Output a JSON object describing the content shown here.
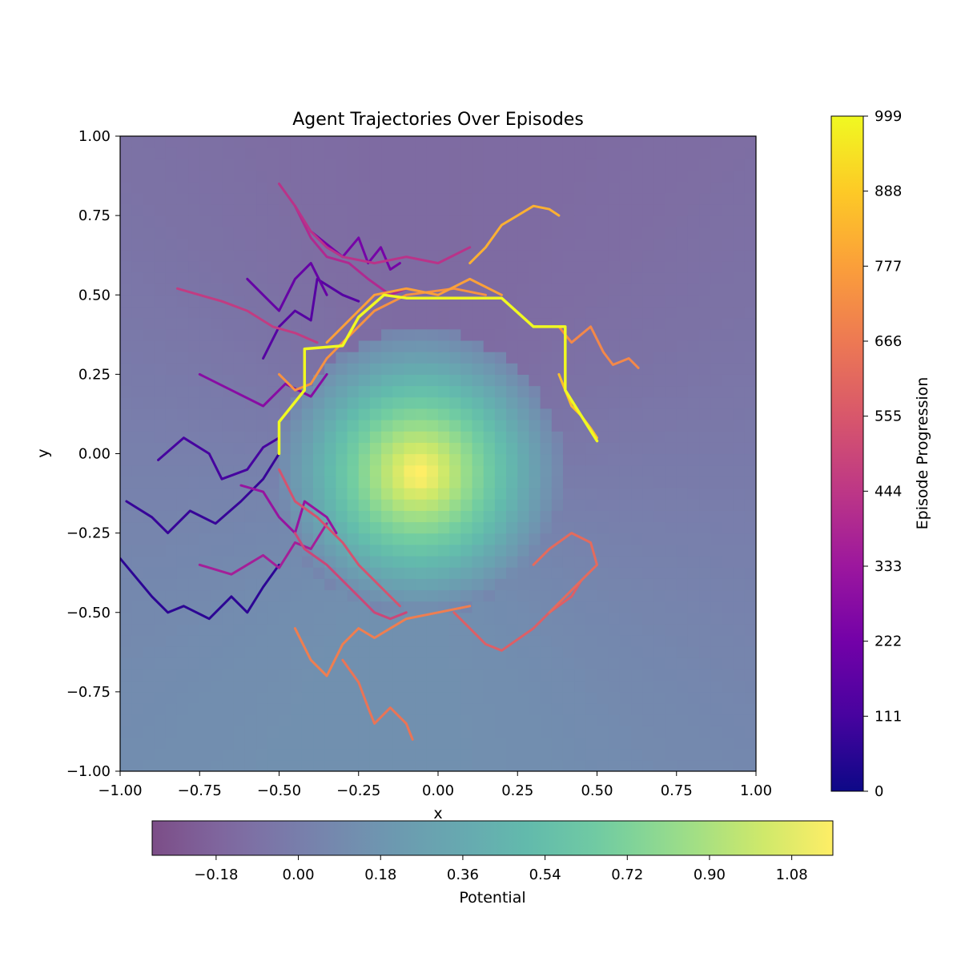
{
  "chart_data": {
    "type": "line",
    "title": "Agent Trajectories Over Episodes",
    "xlabel": "x",
    "ylabel": "y",
    "xlim": [
      -1.0,
      1.0
    ],
    "ylim": [
      -1.0,
      1.0
    ],
    "x_ticks": [
      "−1.00",
      "−0.75",
      "−0.50",
      "−0.25",
      "0.00",
      "0.25",
      "0.50",
      "0.75",
      "1.00"
    ],
    "y_ticks": [
      "−1.00",
      "−0.75",
      "−0.50",
      "−0.25",
      "0.00",
      "0.25",
      "0.50",
      "0.75",
      "1.00"
    ],
    "grid": false,
    "background_field": {
      "label": "Potential",
      "peak": [
        -0.06,
        -0.06
      ],
      "peak_value": 1.17,
      "colormap": "viridis",
      "alpha": 0.7,
      "range": [
        -0.32,
        1.17
      ],
      "colorbar_ticks": [
        "−0.18",
        "0.00",
        "0.18",
        "0.36",
        "0.54",
        "0.72",
        "0.90",
        "1.08"
      ],
      "colorbar_tick_values": [
        -0.18,
        0.0,
        0.18,
        0.36,
        0.54,
        0.72,
        0.9,
        1.08
      ],
      "colorbar_orientation": "horizontal-bottom"
    },
    "trajectory_colorbar": {
      "label": "Episode Progression",
      "colormap": "plasma",
      "range": [
        0,
        999
      ],
      "ticks": [
        "0",
        "111",
        "222",
        "333",
        "444",
        "555",
        "666",
        "777",
        "888",
        "999"
      ],
      "tick_values": [
        0,
        111,
        222,
        333,
        444,
        555,
        666,
        777,
        888,
        999
      ],
      "orientation": "vertical-right"
    },
    "series": [
      {
        "episode": 60,
        "x": [
          -1.0,
          -0.9,
          -0.85,
          -0.8,
          -0.72,
          -0.65,
          -0.6,
          -0.55,
          -0.5
        ],
        "y": [
          -0.33,
          -0.45,
          -0.5,
          -0.48,
          -0.52,
          -0.45,
          -0.5,
          -0.42,
          -0.35
        ]
      },
      {
        "episode": 80,
        "x": [
          -0.98,
          -0.9,
          -0.85,
          -0.78,
          -0.7,
          -0.62,
          -0.55,
          -0.5
        ],
        "y": [
          -0.15,
          -0.2,
          -0.25,
          -0.18,
          -0.22,
          -0.15,
          -0.08,
          0.0
        ]
      },
      {
        "episode": 110,
        "x": [
          -0.88,
          -0.8,
          -0.72,
          -0.68,
          -0.6,
          -0.55,
          -0.5
        ],
        "y": [
          -0.02,
          0.05,
          0.0,
          -0.08,
          -0.05,
          0.02,
          0.05
        ]
      },
      {
        "episode": 150,
        "x": [
          -0.55,
          -0.5,
          -0.45,
          -0.4,
          -0.38,
          -0.3,
          -0.25
        ],
        "y": [
          0.3,
          0.4,
          0.45,
          0.42,
          0.55,
          0.5,
          0.48
        ]
      },
      {
        "episode": 190,
        "x": [
          -0.6,
          -0.55,
          -0.5,
          -0.45,
          -0.4,
          -0.35
        ],
        "y": [
          0.55,
          0.5,
          0.45,
          0.55,
          0.6,
          0.5
        ]
      },
      {
        "episode": 230,
        "x": [
          -0.4,
          -0.3,
          -0.25,
          -0.22,
          -0.18,
          -0.15,
          -0.12
        ],
        "y": [
          0.7,
          0.62,
          0.68,
          0.6,
          0.65,
          0.58,
          0.6
        ]
      },
      {
        "episode": 280,
        "x": [
          -0.75,
          -0.65,
          -0.55,
          -0.48,
          -0.4,
          -0.35
        ],
        "y": [
          0.25,
          0.2,
          0.15,
          0.22,
          0.18,
          0.25
        ]
      },
      {
        "episode": 320,
        "x": [
          -0.62,
          -0.55,
          -0.5,
          -0.45,
          -0.42,
          -0.35,
          -0.32
        ],
        "y": [
          -0.1,
          -0.12,
          -0.2,
          -0.25,
          -0.15,
          -0.2,
          -0.25
        ]
      },
      {
        "episode": 360,
        "x": [
          -0.75,
          -0.65,
          -0.55,
          -0.5,
          -0.45,
          -0.4,
          -0.35
        ],
        "y": [
          -0.35,
          -0.38,
          -0.32,
          -0.36,
          -0.28,
          -0.3,
          -0.22
        ]
      },
      {
        "episode": 400,
        "x": [
          -0.45,
          -0.4,
          -0.35,
          -0.28,
          -0.22,
          -0.15,
          -0.1
        ],
        "y": [
          0.78,
          0.68,
          0.62,
          0.6,
          0.55,
          0.5,
          0.52
        ]
      },
      {
        "episode": 430,
        "x": [
          -0.5,
          -0.45,
          -0.4,
          -0.35,
          -0.3,
          -0.2,
          -0.1,
          0.0,
          0.1
        ],
        "y": [
          0.85,
          0.78,
          0.7,
          0.65,
          0.62,
          0.6,
          0.62,
          0.6,
          0.65
        ]
      },
      {
        "episode": 460,
        "x": [
          -0.82,
          -0.75,
          -0.68,
          -0.6,
          -0.52,
          -0.45,
          -0.38
        ],
        "y": [
          0.52,
          0.5,
          0.48,
          0.45,
          0.4,
          0.38,
          0.35
        ]
      },
      {
        "episode": 500,
        "x": [
          -0.45,
          -0.42,
          -0.35,
          -0.3,
          -0.25,
          -0.2,
          -0.15,
          -0.1
        ],
        "y": [
          -0.25,
          -0.3,
          -0.35,
          -0.4,
          -0.45,
          -0.5,
          -0.52,
          -0.5
        ]
      },
      {
        "episode": 540,
        "x": [
          -0.5,
          -0.45,
          -0.38,
          -0.3,
          -0.25,
          -0.18,
          -0.12
        ],
        "y": [
          -0.05,
          -0.15,
          -0.2,
          -0.28,
          -0.35,
          -0.42,
          -0.48
        ]
      },
      {
        "episode": 580,
        "x": [
          0.05,
          0.1,
          0.15,
          0.2,
          0.3,
          0.35,
          0.42,
          0.45
        ],
        "y": [
          -0.5,
          -0.55,
          -0.6,
          -0.62,
          -0.55,
          -0.5,
          -0.45,
          -0.4
        ]
      },
      {
        "episode": 620,
        "x": [
          0.3,
          0.35,
          0.42,
          0.48,
          0.5,
          0.45,
          0.4,
          0.35
        ],
        "y": [
          -0.35,
          -0.3,
          -0.25,
          -0.28,
          -0.35,
          -0.4,
          -0.45,
          -0.5
        ]
      },
      {
        "episode": 650,
        "x": [
          -0.3,
          -0.25,
          -0.22,
          -0.2,
          -0.15,
          -0.1,
          -0.08
        ],
        "y": [
          -0.65,
          -0.72,
          -0.8,
          -0.85,
          -0.8,
          -0.85,
          -0.9
        ]
      },
      {
        "episode": 680,
        "x": [
          -0.45,
          -0.4,
          -0.35,
          -0.3,
          -0.25,
          -0.2,
          -0.1,
          0.0,
          0.1
        ],
        "y": [
          -0.55,
          -0.65,
          -0.7,
          -0.6,
          -0.55,
          -0.58,
          -0.52,
          -0.5,
          -0.48
        ]
      },
      {
        "episode": 710,
        "x": [
          0.38,
          0.42,
          0.48,
          0.52,
          0.55,
          0.6,
          0.63
        ],
        "y": [
          0.4,
          0.35,
          0.4,
          0.32,
          0.28,
          0.3,
          0.27
        ]
      },
      {
        "episode": 740,
        "x": [
          -0.5,
          -0.45,
          -0.4,
          -0.35,
          -0.3,
          -0.2,
          -0.1,
          0.05,
          0.15
        ],
        "y": [
          0.25,
          0.2,
          0.22,
          0.3,
          0.35,
          0.45,
          0.5,
          0.52,
          0.5
        ]
      },
      {
        "episode": 780,
        "x": [
          -0.35,
          -0.3,
          -0.25,
          -0.2,
          -0.1,
          0.0,
          0.1,
          0.2
        ],
        "y": [
          0.35,
          0.4,
          0.45,
          0.5,
          0.52,
          0.5,
          0.55,
          0.5
        ]
      },
      {
        "episode": 820,
        "x": [
          0.1,
          0.15,
          0.2,
          0.25,
          0.3,
          0.35,
          0.38
        ],
        "y": [
          0.6,
          0.65,
          0.72,
          0.75,
          0.78,
          0.77,
          0.75
        ]
      },
      {
        "episode": 860,
        "x": [
          0.38,
          0.4,
          0.42,
          0.45,
          0.48,
          0.5
        ],
        "y": [
          0.25,
          0.2,
          0.15,
          0.12,
          0.08,
          0.05
        ]
      },
      {
        "episode": 999,
        "x": [
          -0.5,
          -0.5,
          -0.42,
          -0.42,
          -0.3,
          -0.25,
          -0.17,
          -0.1,
          0.2,
          0.3,
          0.4,
          0.4,
          0.5
        ],
        "y": [
          0.0,
          0.1,
          0.2,
          0.33,
          0.34,
          0.43,
          0.5,
          0.49,
          0.49,
          0.4,
          0.4,
          0.2,
          0.04
        ]
      }
    ]
  }
}
